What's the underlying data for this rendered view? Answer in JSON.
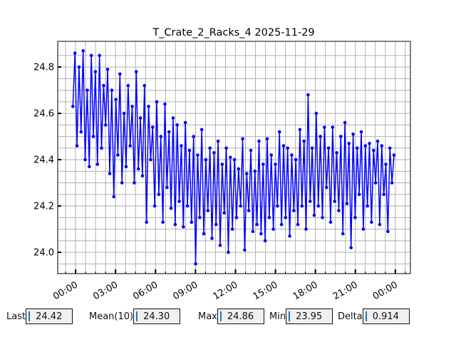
{
  "chart_data": {
    "type": "line",
    "title": "T_Crate_2_Racks_4 2025-11-29",
    "xlabel": "",
    "ylabel": "",
    "x_unit": "hours since 00:00",
    "x_start": -0.2,
    "x_step": 0.1535,
    "xlim": [
      -1.34,
      25.13
    ],
    "ylim": [
      23.908,
      24.911
    ],
    "grid": true,
    "color": "#0000ff",
    "xticks": [
      {
        "value": 0,
        "label": "00:00"
      },
      {
        "value": 3,
        "label": "03:00"
      },
      {
        "value": 6,
        "label": "06:00"
      },
      {
        "value": 9,
        "label": "09:00"
      },
      {
        "value": 12,
        "label": "12:00"
      },
      {
        "value": 15,
        "label": "15:00"
      },
      {
        "value": 18,
        "label": "18:00"
      },
      {
        "value": 21,
        "label": "21:00"
      },
      {
        "value": 24,
        "label": "00:00"
      }
    ],
    "yticks": [
      {
        "value": 24.0,
        "label": "24.0"
      },
      {
        "value": 24.2,
        "label": "24.2"
      },
      {
        "value": 24.4,
        "label": "24.4"
      },
      {
        "value": 24.6,
        "label": "24.6"
      },
      {
        "value": 24.8,
        "label": "24.8"
      }
    ],
    "values": [
      24.63,
      24.86,
      24.46,
      24.8,
      24.52,
      24.87,
      24.4,
      24.7,
      24.37,
      24.85,
      24.5,
      24.78,
      24.38,
      24.85,
      24.45,
      24.72,
      24.55,
      24.79,
      24.34,
      24.7,
      24.24,
      24.66,
      24.42,
      24.77,
      24.3,
      24.6,
      24.37,
      24.72,
      24.46,
      24.63,
      24.3,
      24.78,
      24.36,
      24.58,
      24.33,
      24.72,
      24.13,
      24.63,
      24.4,
      24.54,
      24.2,
      24.65,
      24.25,
      24.5,
      24.13,
      24.64,
      24.28,
      24.52,
      24.19,
      24.58,
      24.12,
      24.55,
      24.22,
      24.46,
      24.11,
      24.56,
      24.2,
      24.44,
      24.13,
      24.5,
      23.95,
      24.42,
      24.15,
      24.53,
      24.08,
      24.4,
      24.18,
      24.45,
      24.06,
      24.43,
      24.12,
      24.48,
      24.03,
      24.38,
      24.17,
      24.45,
      24.0,
      24.41,
      24.1,
      24.4,
      24.15,
      24.36,
      24.2,
      24.49,
      24.01,
      24.34,
      24.18,
      24.44,
      24.09,
      24.35,
      24.12,
      24.48,
      24.08,
      24.38,
      24.05,
      24.49,
      24.15,
      24.42,
      24.1,
      24.38,
      24.2,
      24.52,
      24.12,
      24.46,
      24.15,
      24.45,
      24.07,
      24.42,
      24.18,
      24.4,
      24.12,
      24.53,
      24.2,
      24.48,
      24.1,
      24.68,
      24.22,
      24.45,
      24.16,
      24.6,
      24.2,
      24.5,
      24.15,
      24.54,
      24.28,
      24.45,
      24.13,
      24.54,
      24.22,
      24.43,
      24.18,
      24.5,
      24.08,
      24.56,
      24.21,
      24.47,
      24.02,
      24.51,
      24.15,
      24.45,
      24.25,
      24.52,
      24.1,
      24.46,
      24.2,
      24.47,
      24.13,
      24.44,
      24.3,
      24.48,
      24.12,
      24.46,
      24.25,
      24.38,
      24.09,
      24.45,
      24.3,
      24.42
    ]
  },
  "stats": {
    "last_label": "Last",
    "last_value": "24.42",
    "mean_label": "Mean(10)",
    "mean_value": "24.30",
    "max_label": "Max",
    "max_value": "24.86",
    "min_label": "Min",
    "min_value": "23.95",
    "delta_label": "Delta",
    "delta_value": "0.914"
  }
}
